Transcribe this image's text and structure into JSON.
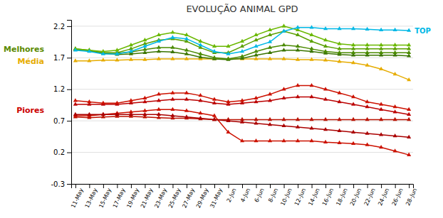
{
  "chart_data": {
    "type": "line",
    "title": "EVOLUÇÃO ANIMAL GPD",
    "categories": [
      "11-May",
      "13-May",
      "15-May",
      "17-May",
      "19-May",
      "21-May",
      "23-May",
      "25-May",
      "27-May",
      "29-May",
      "31-May",
      "2-Jun",
      "4-Jun",
      "6-Jun",
      "8-Jun",
      "10-Jun",
      "12-Jun",
      "14-Jun",
      "16-Jun",
      "18-Jun",
      "20-Jun",
      "22-Jun",
      "24-Jun",
      "26-Jun",
      "28-Jun"
    ],
    "series": [
      {
        "name": "TOP",
        "color": "#00b8e6",
        "values": [
          1.82,
          1.8,
          1.76,
          1.76,
          1.8,
          1.88,
          1.96,
          2.02,
          2.0,
          1.9,
          1.8,
          1.76,
          1.8,
          1.88,
          1.95,
          2.12,
          2.18,
          2.18,
          2.16,
          2.16,
          2.16,
          2.15,
          2.14,
          2.14,
          2.13
        ]
      },
      {
        "color": "#6ab800",
        "values": [
          1.84,
          1.82,
          1.8,
          1.82,
          1.9,
          1.98,
          2.06,
          2.1,
          2.06,
          1.96,
          1.88,
          1.88,
          1.96,
          2.06,
          2.14,
          2.2,
          2.14,
          2.06,
          1.98,
          1.92,
          1.9,
          1.9,
          1.9,
          1.9,
          1.9
        ]
      },
      {
        "color": "#5aa000",
        "values": [
          1.84,
          1.82,
          1.78,
          1.78,
          1.84,
          1.92,
          1.98,
          2.0,
          1.96,
          1.86,
          1.78,
          1.78,
          1.88,
          1.98,
          2.06,
          2.12,
          2.06,
          1.96,
          1.88,
          1.84,
          1.84,
          1.84,
          1.84,
          1.84,
          1.84
        ]
      },
      {
        "color": "#4a8a00",
        "values": [
          1.83,
          1.81,
          1.78,
          1.77,
          1.79,
          1.83,
          1.86,
          1.86,
          1.82,
          1.76,
          1.7,
          1.68,
          1.72,
          1.8,
          1.86,
          1.9,
          1.88,
          1.84,
          1.8,
          1.78,
          1.78,
          1.78,
          1.78,
          1.78,
          1.78
        ]
      },
      {
        "color": "#3a7400",
        "values": [
          1.83,
          1.81,
          1.77,
          1.75,
          1.76,
          1.78,
          1.8,
          1.79,
          1.76,
          1.71,
          1.68,
          1.67,
          1.69,
          1.74,
          1.78,
          1.82,
          1.82,
          1.8,
          1.77,
          1.75,
          1.74,
          1.74,
          1.74,
          1.74,
          1.73
        ]
      },
      {
        "name": "Média",
        "color": "#e6ac00",
        "values": [
          1.65,
          1.65,
          1.66,
          1.66,
          1.67,
          1.67,
          1.68,
          1.68,
          1.68,
          1.68,
          1.68,
          1.68,
          1.68,
          1.68,
          1.68,
          1.68,
          1.67,
          1.67,
          1.66,
          1.64,
          1.62,
          1.58,
          1.52,
          1.44,
          1.35
        ]
      },
      {
        "color": "#cc1100",
        "values": [
          1.02,
          1.0,
          0.98,
          0.98,
          1.02,
          1.06,
          1.12,
          1.14,
          1.14,
          1.1,
          1.04,
          1.0,
          1.02,
          1.06,
          1.12,
          1.2,
          1.26,
          1.26,
          1.2,
          1.14,
          1.08,
          1.0,
          0.96,
          0.92,
          0.88
        ]
      },
      {
        "color": "#bb0000",
        "values": [
          0.96,
          0.96,
          0.96,
          0.96,
          0.98,
          1.0,
          1.02,
          1.04,
          1.04,
          1.02,
          0.98,
          0.96,
          0.98,
          1.0,
          1.02,
          1.06,
          1.08,
          1.08,
          1.04,
          1.0,
          0.96,
          0.92,
          0.88,
          0.84,
          0.8
        ]
      },
      {
        "color": "#aa0000",
        "values": [
          0.8,
          0.8,
          0.8,
          0.8,
          0.8,
          0.8,
          0.8,
          0.78,
          0.76,
          0.74,
          0.72,
          0.7,
          0.68,
          0.66,
          0.64,
          0.62,
          0.6,
          0.58,
          0.56,
          0.54,
          0.52,
          0.5,
          0.48,
          0.46,
          0.44
        ]
      },
      {
        "color": "#cc1100",
        "values": [
          0.78,
          0.78,
          0.8,
          0.82,
          0.84,
          0.86,
          0.88,
          0.88,
          0.86,
          0.82,
          0.78,
          0.52,
          0.38,
          0.38,
          0.38,
          0.38,
          0.38,
          0.38,
          0.36,
          0.35,
          0.34,
          0.32,
          0.28,
          0.22,
          0.16
        ]
      },
      {
        "color": "#bb1100",
        "values": [
          0.76,
          0.75,
          0.76,
          0.77,
          0.77,
          0.76,
          0.75,
          0.74,
          0.74,
          0.73,
          0.72,
          0.72,
          0.72,
          0.72,
          0.72,
          0.72,
          0.72,
          0.72,
          0.72,
          0.72,
          0.72,
          0.72,
          0.72,
          0.72,
          0.72
        ]
      }
    ],
    "annotations": [
      {
        "text": "Melhores",
        "color": "#5a8a00"
      },
      {
        "text": "Piores",
        "color": "#cc0000"
      }
    ],
    "ylim": [
      -0.3,
      2.3
    ],
    "yticks": [
      -0.3,
      0.2,
      0.7,
      1.2,
      1.7,
      2.2
    ],
    "grid": true,
    "marker": "triangle"
  }
}
